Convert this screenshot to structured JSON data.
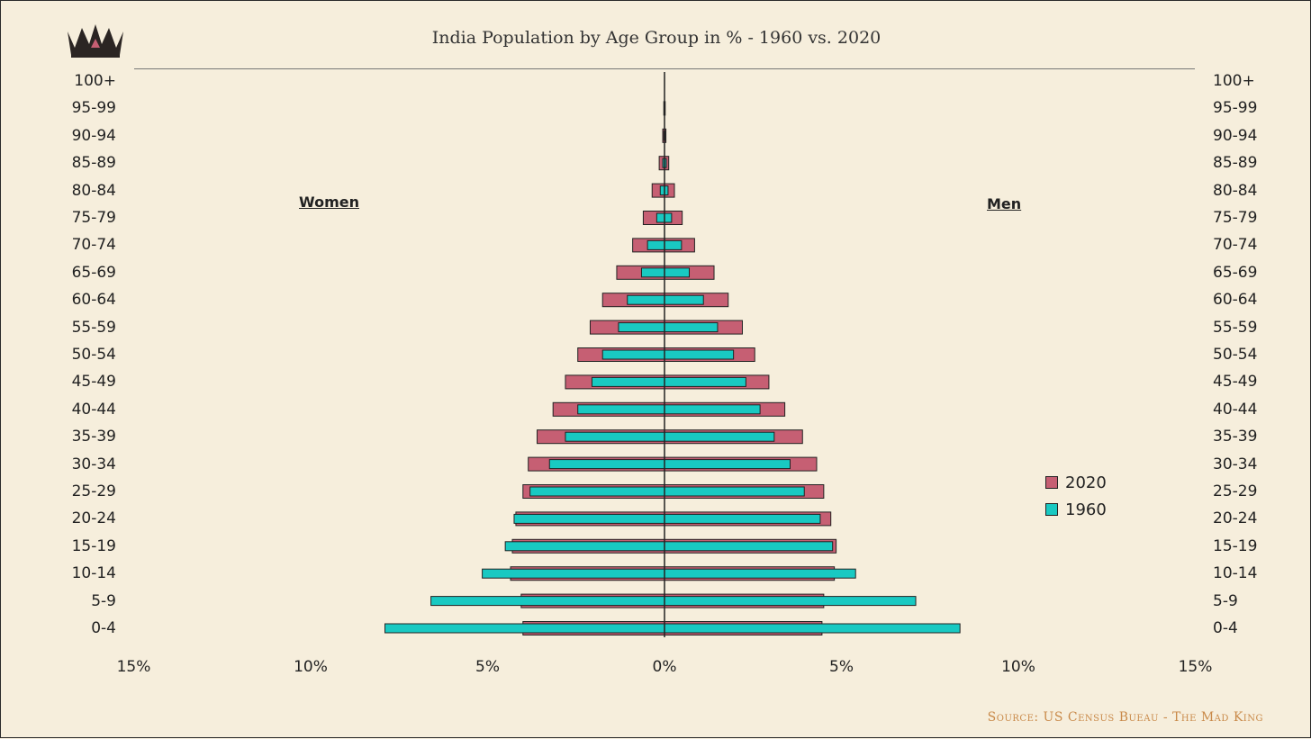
{
  "title": "India Population by Age Group in % - 1960 vs. 2020",
  "source": "Source: US Census Bueau - The Mad King",
  "labels": {
    "left": "Women",
    "right": "Men"
  },
  "colors": {
    "series_2020": "#c65f73",
    "series_1960": "#19c9c2",
    "axis": "#222222"
  },
  "icon": "crown-icon",
  "chart_data": {
    "type": "bar",
    "orientation": "horizontal",
    "categories": [
      "100+",
      "95-99",
      "90-94",
      "85-89",
      "80-84",
      "75-79",
      "70-74",
      "65-69",
      "60-64",
      "55-59",
      "50-54",
      "45-49",
      "40-44",
      "35-39",
      "30-34",
      "25-29",
      "20-24",
      "15-19",
      "10-14",
      "5-9",
      "0-4"
    ],
    "series": [
      {
        "name": "2020",
        "color": "#c65f73",
        "women": [
          0.0,
          0.02,
          0.05,
          0.15,
          0.35,
          0.6,
          0.9,
          1.35,
          1.75,
          2.1,
          2.45,
          2.8,
          3.15,
          3.6,
          3.85,
          4.0,
          4.2,
          4.3,
          4.35,
          4.05,
          4.0
        ],
        "men": [
          0.0,
          0.02,
          0.04,
          0.12,
          0.28,
          0.5,
          0.85,
          1.4,
          1.8,
          2.2,
          2.55,
          2.95,
          3.4,
          3.9,
          4.3,
          4.5,
          4.7,
          4.85,
          4.8,
          4.5,
          4.45
        ]
      },
      {
        "name": "1960",
        "color": "#19c9c2",
        "women": [
          0.0,
          0.0,
          0.02,
          0.05,
          0.12,
          0.22,
          0.48,
          0.65,
          1.05,
          1.3,
          1.75,
          2.05,
          2.45,
          2.8,
          3.25,
          3.8,
          4.25,
          4.5,
          5.15,
          6.6,
          7.9
        ],
        "men": [
          0.0,
          0.0,
          0.02,
          0.05,
          0.1,
          0.2,
          0.48,
          0.7,
          1.1,
          1.5,
          1.95,
          2.3,
          2.7,
          3.1,
          3.55,
          3.95,
          4.4,
          4.75,
          5.4,
          7.1,
          8.35
        ]
      }
    ],
    "xlim": [
      -15,
      15
    ],
    "ticks": [
      "15%",
      "10%",
      "5%",
      "0%",
      "5%",
      "10%",
      "15%"
    ],
    "tick_values": [
      -15,
      -10,
      -5,
      0,
      5,
      10,
      15
    ],
    "legend": [
      "2020",
      "1960"
    ],
    "legend_position": "right",
    "grid": false
  }
}
